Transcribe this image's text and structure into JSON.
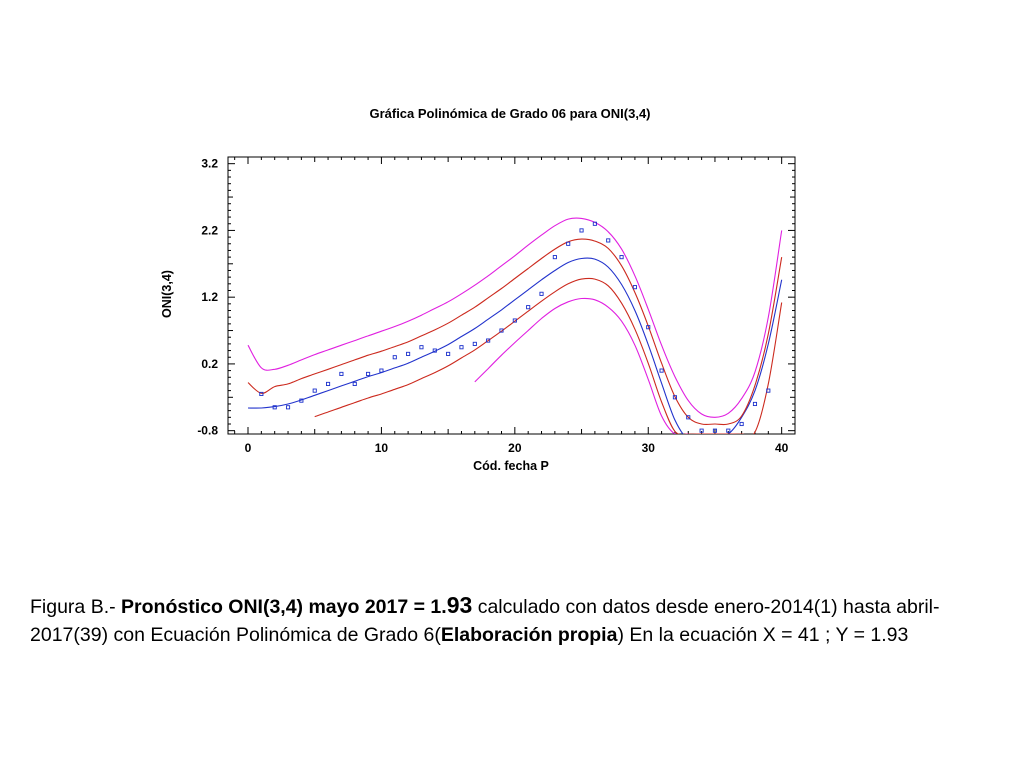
{
  "chart_data": {
    "type": "scatter",
    "title": "Gráfica Polinómica de Grado 06 para ONI(3,4)",
    "xlabel": "Cód. fecha P",
    "ylabel": "ONI(3,4)",
    "xlim": [
      -1.5,
      41
    ],
    "ylim": [
      -0.85,
      3.3
    ],
    "xticks": [
      0,
      10,
      20,
      30,
      40
    ],
    "xtick_labels": [
      "0",
      "10",
      "20",
      "30",
      "40"
    ],
    "yticks": [
      -0.8,
      0.2,
      1.2,
      2.2,
      3.2
    ],
    "ytick_labels": [
      "-0.8",
      "0.2",
      "1.2",
      "2.2",
      "3.2"
    ],
    "grid": false,
    "colors": {
      "observed": "#1a2fcc",
      "fit": "#2233cc",
      "band_inner": "#cc2a1e",
      "band_outer": "#e020e0",
      "axes": "#000000"
    },
    "series": [
      {
        "role": "observed",
        "marker": "square",
        "x": [
          1,
          2,
          3,
          4,
          5,
          6,
          7,
          8,
          9,
          10,
          11,
          12,
          13,
          14,
          15,
          16,
          17,
          18,
          19,
          20,
          21,
          22,
          23,
          24,
          25,
          26,
          27,
          28,
          29,
          30,
          31,
          32,
          33,
          34,
          35,
          36,
          37,
          38,
          39
        ],
        "y": [
          -0.25,
          -0.45,
          -0.45,
          -0.35,
          -0.2,
          -0.1,
          0.05,
          -0.1,
          0.05,
          0.1,
          0.3,
          0.35,
          0.45,
          0.4,
          0.35,
          0.45,
          0.5,
          0.55,
          0.7,
          0.85,
          1.05,
          1.25,
          1.8,
          2.0,
          2.2,
          2.3,
          2.05,
          1.8,
          1.35,
          0.75,
          0.1,
          -0.3,
          -0.6,
          -0.8,
          -0.8,
          -0.8,
          -0.7,
          -0.4,
          -0.2
        ]
      },
      {
        "role": "fit",
        "x": [
          0,
          1,
          2,
          3,
          4,
          5,
          6,
          7,
          8,
          9,
          10,
          11,
          12,
          13,
          14,
          15,
          16,
          17,
          18,
          19,
          20,
          21,
          22,
          23,
          24,
          25,
          26,
          27,
          28,
          29,
          30,
          31,
          32,
          33,
          34,
          35,
          36,
          37,
          38,
          39,
          40
        ],
        "y": [
          -0.46,
          -0.46,
          -0.44,
          -0.4,
          -0.34,
          -0.27,
          -0.2,
          -0.13,
          -0.06,
          0.01,
          0.07,
          0.14,
          0.21,
          0.3,
          0.39,
          0.49,
          0.61,
          0.73,
          0.87,
          1.01,
          1.16,
          1.31,
          1.46,
          1.6,
          1.72,
          1.78,
          1.77,
          1.65,
          1.39,
          1.0,
          0.49,
          -0.09,
          -0.64,
          -0.94,
          -0.97,
          -0.9,
          -0.85,
          -0.6,
          -0.2,
          0.5,
          1.46
        ]
      },
      {
        "role": "band_inner_upper",
        "x": [
          0,
          1,
          2,
          3,
          4,
          5,
          6,
          7,
          8,
          9,
          10,
          11,
          12,
          13,
          14,
          15,
          16,
          17,
          18,
          19,
          20,
          21,
          22,
          23,
          24,
          25,
          26,
          27,
          28,
          29,
          30,
          31,
          32,
          33,
          34,
          35,
          36,
          37,
          38,
          39,
          40
        ],
        "y": [
          -0.08,
          -0.24,
          -0.14,
          -0.1,
          -0.02,
          0.05,
          0.12,
          0.19,
          0.26,
          0.33,
          0.39,
          0.46,
          0.53,
          0.62,
          0.71,
          0.81,
          0.93,
          1.05,
          1.19,
          1.33,
          1.48,
          1.63,
          1.78,
          1.92,
          2.03,
          2.07,
          2.04,
          1.93,
          1.67,
          1.27,
          0.77,
          0.21,
          -0.29,
          -0.6,
          -0.7,
          -0.7,
          -0.7,
          -0.58,
          -0.12,
          0.65,
          1.8
        ]
      },
      {
        "role": "band_inner_lower",
        "x": [
          5,
          6,
          7,
          8,
          9,
          10,
          11,
          12,
          13,
          14,
          15,
          16,
          17,
          18,
          19,
          20,
          21,
          22,
          23,
          24,
          25,
          26,
          27,
          28,
          29,
          30,
          31,
          32,
          33,
          34,
          35,
          36,
          37,
          38,
          39,
          40
        ],
        "y": [
          -0.59,
          -0.52,
          -0.45,
          -0.38,
          -0.31,
          -0.25,
          -0.18,
          -0.11,
          -0.02,
          0.07,
          0.17,
          0.29,
          0.41,
          0.55,
          0.69,
          0.84,
          0.99,
          1.14,
          1.28,
          1.4,
          1.47,
          1.47,
          1.37,
          1.11,
          0.72,
          0.21,
          -0.37,
          -0.81,
          -0.85,
          -0.85,
          -0.85,
          -0.85,
          -0.85,
          -0.82,
          -0.1,
          1.12
        ]
      },
      {
        "role": "band_outer_upper",
        "x": [
          0,
          1,
          2,
          3,
          4,
          5,
          6,
          7,
          8,
          9,
          10,
          11,
          12,
          13,
          14,
          15,
          16,
          17,
          18,
          19,
          20,
          21,
          22,
          23,
          24,
          25,
          26,
          27,
          28,
          29,
          30,
          31,
          32,
          33,
          34,
          35,
          36,
          37,
          38,
          39,
          40
        ],
        "y": [
          0.48,
          0.14,
          0.12,
          0.18,
          0.26,
          0.34,
          0.41,
          0.48,
          0.55,
          0.62,
          0.69,
          0.76,
          0.84,
          0.93,
          1.03,
          1.13,
          1.25,
          1.38,
          1.52,
          1.67,
          1.82,
          1.98,
          2.13,
          2.27,
          2.37,
          2.38,
          2.32,
          2.18,
          1.92,
          1.52,
          1.02,
          0.48,
          0.01,
          -0.35,
          -0.55,
          -0.6,
          -0.54,
          -0.32,
          0.08,
          0.9,
          2.2
        ]
      },
      {
        "role": "band_outer_lower",
        "x": [
          17,
          18,
          19,
          20,
          21,
          22,
          23,
          24,
          25,
          26,
          27,
          28,
          29,
          30,
          31,
          32,
          33
        ],
        "y": [
          -0.07,
          0.13,
          0.33,
          0.52,
          0.7,
          0.88,
          1.03,
          1.13,
          1.18,
          1.16,
          1.05,
          0.84,
          0.48,
          -0.03,
          -0.58,
          -0.85,
          -0.85
        ]
      }
    ]
  },
  "caption": {
    "lead": "Figura B.- ",
    "bold1": "Pronóstico ONI(3,4) mayo 2017 = 1.",
    "bold_big": "93",
    "text1": " calculado con datos desde enero-2014(1) hasta abril-2017(39) con Ecuación Polinómica de Grado 6(",
    "bold2": "Elaboración propia",
    "text2": ") En la ecuación X = 41 ; Y = 1.93"
  }
}
